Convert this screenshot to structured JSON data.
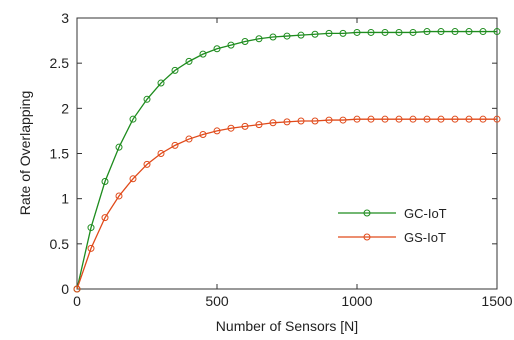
{
  "chart_data": {
    "type": "line",
    "xlabel": "Number of Sensors [N]",
    "ylabel": "Rate of Overlapping",
    "xlim": [
      0,
      1500
    ],
    "ylim": [
      0,
      3
    ],
    "x_ticks": [
      0,
      500,
      1000,
      1500
    ],
    "y_ticks": [
      0,
      0.5,
      1,
      1.5,
      2,
      2.5,
      3
    ],
    "x_tick_labels": [
      "0",
      "500",
      "1000",
      "1500"
    ],
    "y_tick_labels": [
      "0",
      "0.5",
      "1",
      "1.5",
      "2",
      "2.5",
      "3"
    ],
    "grid": false,
    "legend_position": "right, lower-middle",
    "x": [
      0,
      50,
      100,
      150,
      200,
      250,
      300,
      350,
      400,
      450,
      500,
      550,
      600,
      650,
      700,
      750,
      800,
      850,
      900,
      950,
      1000,
      1050,
      1100,
      1150,
      1200,
      1250,
      1300,
      1350,
      1400,
      1450,
      1500
    ],
    "series": [
      {
        "name": "GC-IoT",
        "color": "#1e8c1e",
        "values": [
          0.0,
          0.68,
          1.19,
          1.57,
          1.88,
          2.1,
          2.28,
          2.42,
          2.52,
          2.6,
          2.66,
          2.7,
          2.74,
          2.77,
          2.79,
          2.8,
          2.81,
          2.82,
          2.83,
          2.83,
          2.84,
          2.84,
          2.84,
          2.84,
          2.84,
          2.85,
          2.85,
          2.85,
          2.85,
          2.85,
          2.85
        ]
      },
      {
        "name": "GS-IoT",
        "color": "#e04a1a",
        "values": [
          0.0,
          0.45,
          0.79,
          1.03,
          1.22,
          1.38,
          1.5,
          1.59,
          1.66,
          1.71,
          1.75,
          1.78,
          1.8,
          1.82,
          1.84,
          1.85,
          1.86,
          1.86,
          1.87,
          1.87,
          1.88,
          1.88,
          1.88,
          1.88,
          1.88,
          1.88,
          1.88,
          1.88,
          1.88,
          1.88,
          1.88
        ]
      }
    ]
  }
}
